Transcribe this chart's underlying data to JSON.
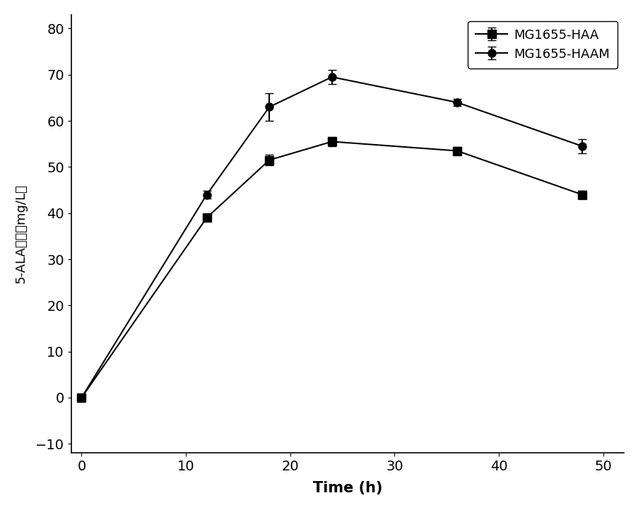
{
  "haa_x": [
    0,
    12,
    18,
    24,
    36,
    48
  ],
  "haa_y": [
    0,
    39,
    51.5,
    55.5,
    53.5,
    44
  ],
  "haa_yerr": [
    0.0,
    0.5,
    1.2,
    1.0,
    0.8,
    0.8
  ],
  "haam_x": [
    0,
    12,
    18,
    24,
    36,
    48
  ],
  "haam_y": [
    0,
    44,
    63,
    69.5,
    64,
    54.5
  ],
  "haam_yerr": [
    0.0,
    0.8,
    3.0,
    1.5,
    0.8,
    1.5
  ],
  "xlabel": "Time (h)",
  "ylabel_prefix": "5-ALA",
  "ylabel_chinese": "含量",
  "ylabel_suffix": "（mg/L）",
  "legend_haa": "MG1655-HAA",
  "legend_haam": "MG1655-HAAM",
  "xlim": [
    -1,
    52
  ],
  "ylim": [
    -12,
    83
  ],
  "xticks": [
    0,
    10,
    20,
    30,
    40,
    50
  ],
  "yticks": [
    -10,
    0,
    10,
    20,
    30,
    40,
    50,
    60,
    70,
    80
  ],
  "line_color": "#000000",
  "marker_square": "s",
  "marker_circle": "o",
  "markersize": 8,
  "linewidth": 1.5,
  "capsize": 4
}
